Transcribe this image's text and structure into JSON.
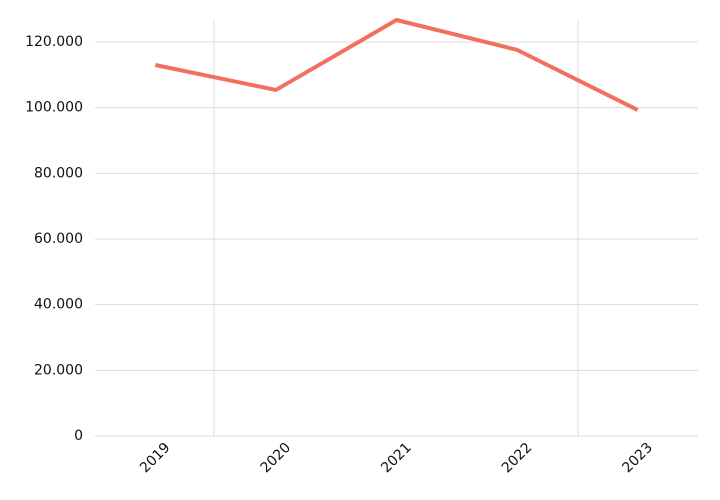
{
  "chart_data": {
    "type": "line",
    "categories": [
      "2019",
      "2020",
      "2021",
      "2022",
      "2023"
    ],
    "values": [
      113000,
      105400,
      126700,
      117600,
      99300
    ],
    "color": "#f3705f",
    "ylim": [
      0,
      126700
    ],
    "yticks": [
      0,
      {
        "value": 20000,
        "label": "20.000"
      },
      {
        "value": 40000,
        "label": "40.000"
      },
      {
        "value": 60000,
        "label": "60.000"
      },
      {
        "value": 80000,
        "label": "80.000"
      },
      {
        "value": 100000,
        "label": "100.000"
      },
      {
        "value": 120000,
        "label": "120.000"
      }
    ],
    "grid": true
  }
}
